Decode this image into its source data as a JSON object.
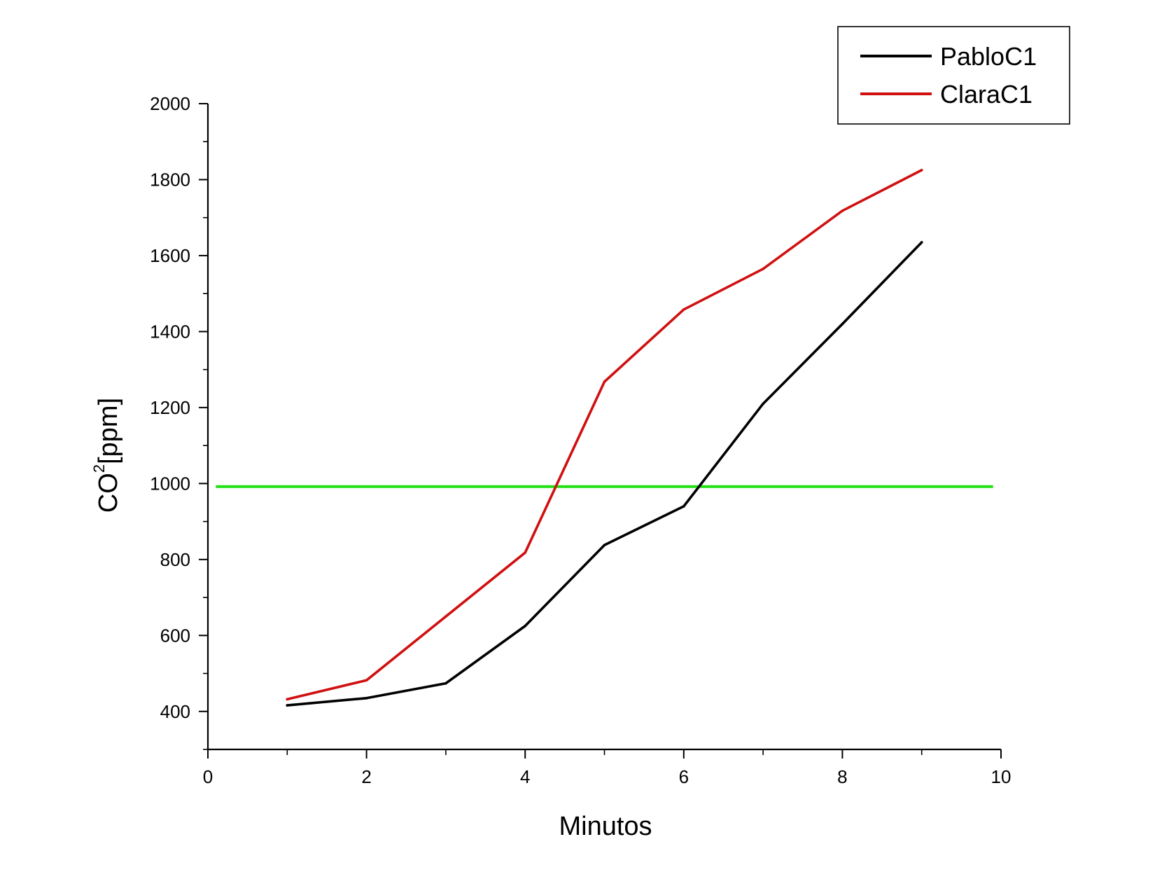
{
  "chart_data": {
    "type": "line",
    "xlabel": "Minutos",
    "ylabel_main": "CO",
    "ylabel_sup": "2",
    "ylabel_unit": "[ppm]",
    "xlim": [
      0,
      10
    ],
    "ylim": [
      300,
      2000
    ],
    "x_ticks": [
      0,
      2,
      4,
      6,
      8,
      10
    ],
    "x_tick_labels": [
      "0",
      "2",
      "4",
      "6",
      "8",
      "10"
    ],
    "x_minor_ticks": [
      1,
      3,
      5,
      7,
      9
    ],
    "y_ticks": [
      400,
      600,
      800,
      1000,
      1200,
      1400,
      1600,
      1800,
      2000
    ],
    "y_tick_labels": [
      "400",
      "600",
      "800",
      "1000",
      "1200",
      "1400",
      "1600",
      "1800",
      "2000"
    ],
    "y_minor_ticks": [
      300,
      500,
      700,
      900,
      1100,
      1300,
      1500,
      1700,
      1900
    ],
    "grid": false,
    "legend_position": "top-right",
    "series": [
      {
        "name": "PabloC1",
        "color": "#000000",
        "x": [
          1,
          2,
          3,
          4,
          5,
          6,
          7,
          8,
          9
        ],
        "values": [
          416,
          435,
          474,
          625,
          838,
          940,
          1210,
          1420,
          1635
        ]
      },
      {
        "name": "ClaraC1",
        "color": "#d01010",
        "x": [
          1,
          2,
          3,
          4,
          5,
          6,
          7,
          8,
          9
        ],
        "values": [
          432,
          482,
          650,
          818,
          1268,
          1458,
          1565,
          1718,
          1825
        ]
      }
    ],
    "reference_line": {
      "color": "#22e014",
      "y": 992,
      "x_range": [
        0.1,
        9.9
      ]
    }
  }
}
